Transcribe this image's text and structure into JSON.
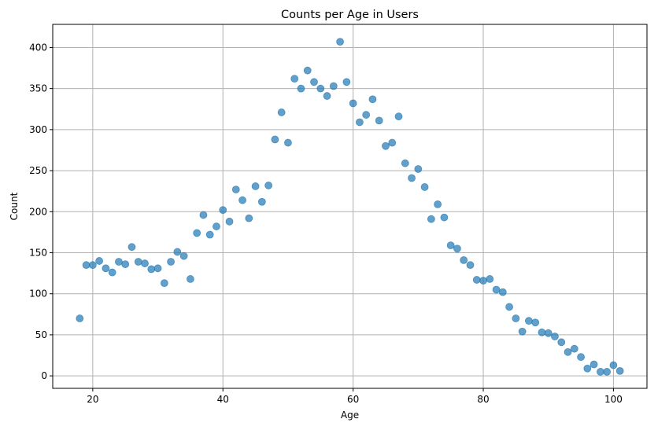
{
  "chart_data": {
    "type": "scatter",
    "title": "Counts per Age in Users",
    "xlabel": "Age",
    "ylabel": "Count",
    "xlim": [
      13.85,
      105.15
    ],
    "ylim": [
      -15.2,
      428.2
    ],
    "xticks": [
      20,
      40,
      60,
      80,
      100
    ],
    "yticks": [
      0,
      50,
      100,
      150,
      200,
      250,
      300,
      350,
      400
    ],
    "grid": true,
    "color": "#1f77b4",
    "opacity": 0.7,
    "series": [
      {
        "x": [
          18,
          19,
          20,
          21,
          22,
          23,
          24,
          25,
          26,
          27,
          28,
          29,
          30,
          31,
          32,
          33,
          34,
          35,
          36,
          37,
          38,
          39,
          40,
          41,
          42,
          43,
          44,
          45,
          46,
          47,
          48,
          49,
          50,
          51,
          52,
          53,
          54,
          55,
          56,
          57,
          58,
          59,
          60,
          61,
          62,
          63,
          64,
          65,
          66,
          67,
          68,
          69,
          70,
          71,
          72,
          73,
          74,
          75,
          76,
          77,
          78,
          79,
          80,
          81,
          82,
          83,
          84,
          85,
          86,
          87,
          88,
          89,
          90,
          91,
          92,
          93,
          94,
          95,
          96,
          97,
          98,
          99,
          100,
          101
        ],
        "y": [
          70,
          135,
          135,
          140,
          131,
          126,
          139,
          136,
          157,
          139,
          137,
          130,
          131,
          113,
          139,
          151,
          146,
          118,
          174,
          196,
          172,
          182,
          202,
          188,
          227,
          214,
          192,
          231,
          212,
          232,
          288,
          321,
          284,
          362,
          350,
          372,
          358,
          350,
          341,
          353,
          407,
          358,
          332,
          309,
          318,
          337,
          311,
          280,
          284,
          316,
          259,
          241,
          252,
          230,
          191,
          209,
          193,
          159,
          155,
          141,
          135,
          117,
          116,
          118,
          105,
          102,
          84,
          70,
          54,
          67,
          65,
          53,
          52,
          48,
          41,
          29,
          33,
          23,
          9,
          14,
          5,
          5,
          13,
          6
        ]
      }
    ]
  }
}
